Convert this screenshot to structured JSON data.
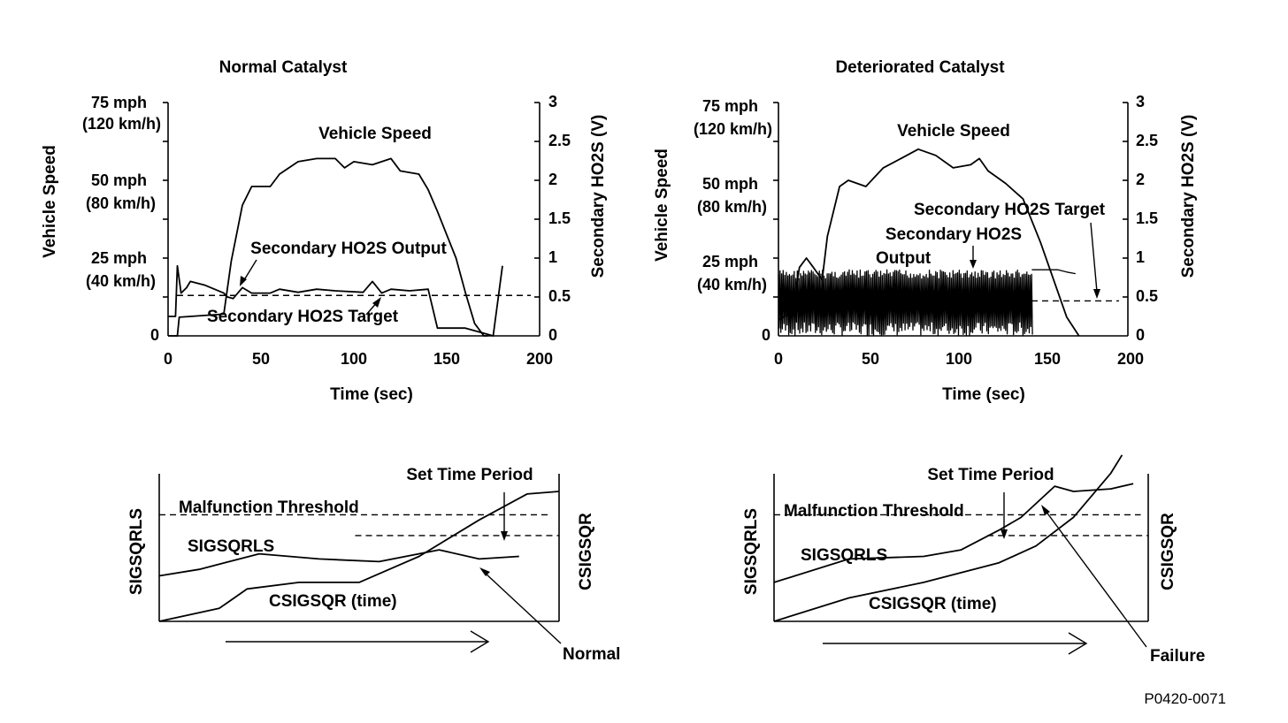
{
  "figure_code": "P0420-0071",
  "chart_data": [
    {
      "type": "line",
      "title": "Normal Catalyst",
      "xlabel": "Time (sec)",
      "ylabel": "Vehicle Speed",
      "y2label": "Secondary HO2S (V)",
      "xlim": [
        0,
        200
      ],
      "x_ticks": [
        "0",
        "50",
        "100",
        "150",
        "200"
      ],
      "y_ticks": [
        "0",
        "25 mph",
        "(40 km/h)",
        "50 mph",
        "(80 km/h)",
        "75 mph",
        "(120 km/h)"
      ],
      "y2_ticks": [
        "0",
        "0.5",
        "1",
        "1.5",
        "2",
        "2.5",
        "3"
      ],
      "y2lim": [
        0,
        3
      ],
      "annotations": [
        "Vehicle Speed",
        "Secondary HO2S Output",
        "Secondary HO2S Target"
      ],
      "target_v": 0.52,
      "series": [
        {
          "name": "Vehicle Speed",
          "axis": "speed_mph",
          "x": [
            0,
            5,
            6,
            30,
            34,
            40,
            45,
            55,
            60,
            70,
            80,
            90,
            95,
            100,
            110,
            120,
            125,
            135,
            140,
            145,
            155,
            160,
            165,
            170,
            172
          ],
          "values": [
            0,
            0,
            6,
            7,
            24,
            42,
            48,
            48,
            52,
            56,
            57,
            57,
            54,
            56,
            55,
            57,
            53,
            52,
            47,
            40,
            25,
            14,
            4,
            0,
            0
          ]
        },
        {
          "name": "Secondary HO2S Output",
          "axis": "volts",
          "x": [
            0,
            4,
            5,
            7,
            10,
            12,
            20,
            25,
            30,
            32,
            35,
            40,
            45,
            55,
            60,
            70,
            80,
            90,
            105,
            110,
            115,
            120,
            130,
            140,
            145,
            160,
            175,
            180
          ],
          "values": [
            0.25,
            0.25,
            0.9,
            0.55,
            0.62,
            0.7,
            0.65,
            0.6,
            0.55,
            0.5,
            0.48,
            0.62,
            0.55,
            0.55,
            0.6,
            0.56,
            0.6,
            0.58,
            0.56,
            0.7,
            0.55,
            0.6,
            0.58,
            0.6,
            0.1,
            0.1,
            0.0,
            0.9
          ]
        }
      ]
    },
    {
      "type": "line",
      "title": "Deteriorated Catalyst",
      "xlabel": "Time (sec)",
      "ylabel": "Vehicle Speed",
      "y2label": "Secondary HO2S (V)",
      "xlim": [
        0,
        200
      ],
      "x_ticks": [
        "0",
        "50",
        "100",
        "150",
        "200"
      ],
      "y_ticks": [
        "0",
        "25 mph",
        "(40 km/h)",
        "50 mph",
        "(80 km/h)",
        "75 mph",
        "(120 km/h)"
      ],
      "y2_ticks": [
        "0",
        "0.5",
        "1",
        "1.5",
        "2",
        "2.5",
        "3"
      ],
      "y2lim": [
        0,
        3
      ],
      "annotations": [
        "Vehicle Speed",
        "Secondary HO2S",
        "Output",
        "Secondary HO2S Target"
      ],
      "target_v": 0.45,
      "series": [
        {
          "name": "Vehicle Speed",
          "axis": "speed_mph",
          "x": [
            0,
            8,
            12,
            16,
            20,
            25,
            28,
            35,
            40,
            50,
            60,
            70,
            80,
            90,
            100,
            110,
            115,
            120,
            130,
            140,
            150,
            160,
            165,
            172
          ],
          "values": [
            5,
            8,
            22,
            25,
            22,
            18,
            32,
            48,
            50,
            48,
            54,
            57,
            60,
            58,
            54,
            55,
            57,
            53,
            49,
            44,
            30,
            14,
            6,
            0
          ]
        },
        {
          "name": "Secondary HO2S Output",
          "axis": "volts",
          "oscillating": true,
          "x_range": [
            0,
            145
          ],
          "min": 0.0,
          "max": 0.85,
          "tail_x": [
            145,
            150,
            160,
            165,
            170
          ],
          "tail_values": [
            0.85,
            0.85,
            0.85,
            0.82,
            0.8
          ]
        }
      ]
    },
    {
      "type": "line",
      "ylabel": "SIGSQRLS",
      "y2label": "CSIGSQR",
      "annotations": [
        "Set Time Period",
        "Malfunction Threshold",
        "SIGSQRLS",
        "CSIGSQR (time)",
        "Normal"
      ],
      "thresholds": {
        "malfunction": 0.82,
        "set_time_period": 0.66
      },
      "series": [
        {
          "name": "SIGSQRLS",
          "t": [
            0.0,
            0.1,
            0.25,
            0.4,
            0.55,
            0.7,
            0.8,
            0.9
          ],
          "values": [
            0.35,
            0.4,
            0.52,
            0.48,
            0.46,
            0.55,
            0.48,
            0.5
          ]
        },
        {
          "name": "CSIGSQR (time)",
          "t": [
            0.0,
            0.15,
            0.22,
            0.35,
            0.5,
            0.65,
            0.8,
            0.92,
            1.0
          ],
          "values": [
            0.0,
            0.1,
            0.25,
            0.3,
            0.3,
            0.5,
            0.78,
            0.98,
            1.0
          ]
        }
      ]
    },
    {
      "type": "line",
      "ylabel": "SIGSQRLS",
      "y2label": "CSIGSQR",
      "annotations": [
        "Set Time Period",
        "Malfunction Threshold",
        "SIGSQRLS",
        "CSIGSQR (time)",
        "Failure"
      ],
      "thresholds": {
        "malfunction": 0.82,
        "set_time_period": 0.66
      },
      "series": [
        {
          "name": "SIGSQRLS",
          "t": [
            0.0,
            0.2,
            0.4,
            0.5,
            0.6,
            0.66,
            0.75,
            0.8,
            0.9,
            0.96
          ],
          "values": [
            0.3,
            0.48,
            0.5,
            0.55,
            0.7,
            0.8,
            1.04,
            1.0,
            1.02,
            1.06
          ]
        },
        {
          "name": "CSIGSQR (time)",
          "t": [
            0.0,
            0.2,
            0.4,
            0.6,
            0.7,
            0.8,
            0.9,
            0.93
          ],
          "values": [
            0.0,
            0.18,
            0.3,
            0.45,
            0.58,
            0.8,
            1.14,
            1.28
          ]
        }
      ]
    }
  ]
}
